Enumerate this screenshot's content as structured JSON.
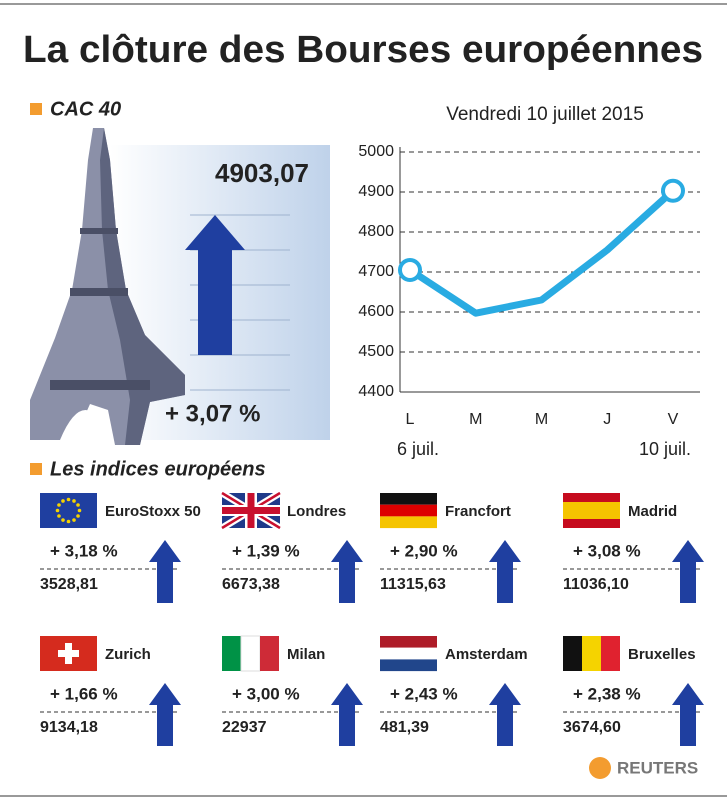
{
  "title": "La clôture des Bourses européennes",
  "cac": {
    "label": "CAC 40",
    "value": "4903,07",
    "change": "+ 3,07 %"
  },
  "chart_data": {
    "type": "line",
    "subtitle": "Vendredi 10 juillet 2015",
    "categories": [
      "L",
      "M",
      "M",
      "J",
      "V"
    ],
    "start_label": "6 juil.",
    "end_label": "10 juil.",
    "series": [
      {
        "name": "CAC 40",
        "color": "#29abe2",
        "values": [
          4705,
          4597,
          4630,
          4755,
          4903.07
        ]
      }
    ],
    "ylim": [
      4400,
      5000
    ],
    "yticks": [
      4400,
      4500,
      4600,
      4700,
      4800,
      4900,
      5000
    ],
    "grid": true
  },
  "indices_title": "Les indices européens",
  "indices": [
    {
      "name": "EuroStoxx 50",
      "change": "+ 3,18 %",
      "value": "3528,81"
    },
    {
      "name": "Londres",
      "change": "+ 1,39 %",
      "value": "6673,38"
    },
    {
      "name": "Francfort",
      "change": "+ 2,90 %",
      "value": "11315,63"
    },
    {
      "name": "Madrid",
      "change": "+ 3,08 %",
      "value": "11036,10"
    },
    {
      "name": "Zurich",
      "change": "+ 1,66 %",
      "value": "9134,18"
    },
    {
      "name": "Milan",
      "change": "+ 3,00 %",
      "value": "22937"
    },
    {
      "name": "Amsterdam",
      "change": "+ 2,43 %",
      "value": "481,39"
    },
    {
      "name": "Bruxelles",
      "change": "+ 2,38 %",
      "value": "3674,60"
    }
  ],
  "source": "REUTERS"
}
